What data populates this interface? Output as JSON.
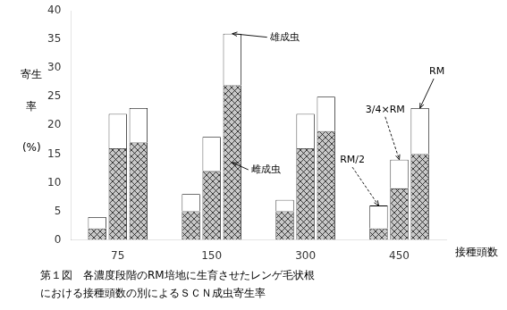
{
  "chart_data": {
    "type": "bar",
    "stacked": true,
    "categories": [
      "75",
      "150",
      "300",
      "450"
    ],
    "bars": [
      "RM/2",
      "3/4×RM",
      "RM"
    ],
    "series": [
      {
        "name": "雌成虫",
        "color": "#c8c8c8",
        "values": [
          [
            2,
            16,
            17
          ],
          [
            5,
            12,
            27
          ],
          [
            5,
            16,
            19
          ],
          [
            2,
            9,
            15
          ]
        ]
      },
      {
        "name": "雄成虫",
        "color": "#ffffff",
        "values": [
          [
            2,
            6,
            6
          ],
          [
            3,
            6,
            9
          ],
          [
            2,
            6,
            6
          ],
          [
            4,
            5,
            8
          ]
        ]
      }
    ],
    "ylim": [
      0,
      40
    ],
    "yticks": [
      0,
      5,
      10,
      15,
      20,
      25,
      30,
      35,
      40
    ],
    "grid": false,
    "xlabel": "接種頭数",
    "ylabel": [
      "寄生",
      "率",
      "(%)"
    ],
    "annotations": [
      {
        "text": "雄成虫",
        "category": "150",
        "bar": "RM",
        "series": "雄成虫",
        "line_style": "solid"
      },
      {
        "text": "雌成虫",
        "category": "150",
        "bar": "RM",
        "series": "雌成虫",
        "line_style": "solid"
      },
      {
        "text": "RM/2",
        "category": "450",
        "bar": "RM/2",
        "series": "雄成虫",
        "line_style": "dashed"
      },
      {
        "text": "3/4×RM",
        "category": "450",
        "bar": "3/4×RM",
        "series": "雄成虫",
        "line_style": "dashed"
      },
      {
        "text": "RM",
        "category": "450",
        "bar": "RM",
        "series": "雄成虫",
        "line_style": "solid"
      }
    ],
    "caption": [
      "第１図　各濃度段階のRM培地に生育させたレンゲ毛状根",
      "における接種頭数の別によるＳＣＮ成虫寄生率"
    ]
  }
}
